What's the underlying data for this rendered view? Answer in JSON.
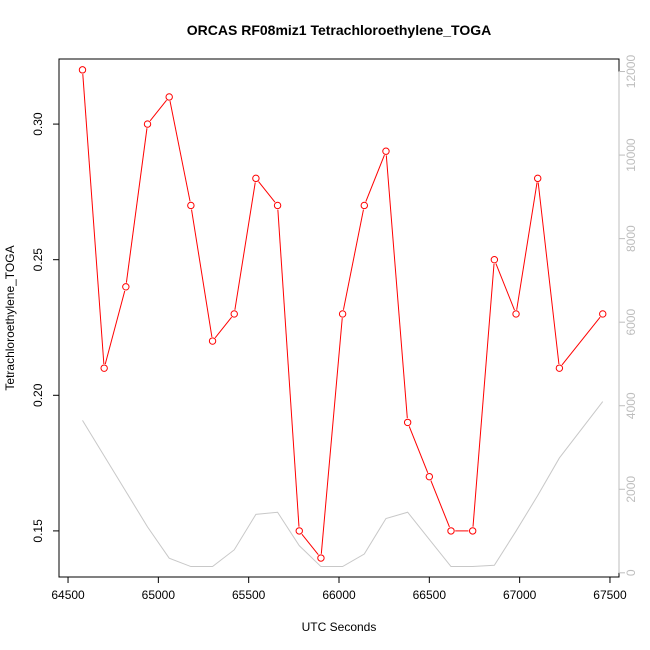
{
  "chart_data": {
    "type": "line",
    "title": "ORCAS RF08miz1 Tetrachloroethylene_TOGA",
    "xlabel": "UTC Seconds",
    "ylabel": "Tetrachloroethylene_TOGA",
    "xlim": [
      64450,
      67550
    ],
    "ylim": [
      0.133,
      0.324
    ],
    "y2lim": [
      -100,
      12300
    ],
    "x_ticks": [
      64500,
      65000,
      65500,
      66000,
      66500,
      67000,
      67500
    ],
    "y_ticks": [
      0.15,
      0.2,
      0.25,
      0.3
    ],
    "y_tick_labels": [
      "0.15",
      "0.20",
      "0.25",
      "0.30"
    ],
    "y2_ticks": [
      0,
      2000,
      4000,
      6000,
      8000,
      10000,
      12000
    ],
    "grid": false,
    "series": [
      {
        "axis": "left",
        "color": "#ff0000",
        "marker": "open-circle",
        "x": [
          64580,
          64700,
          64820,
          64940,
          65060,
          65180,
          65300,
          65420,
          65540,
          65660,
          65780,
          65900,
          66020,
          66140,
          66260,
          66380,
          66500,
          66620,
          66740,
          66860,
          66980,
          67100,
          67220,
          67460
        ],
        "values": [
          0.32,
          0.21,
          0.24,
          0.3,
          0.31,
          0.27,
          0.22,
          0.23,
          0.28,
          0.27,
          0.15,
          0.14,
          0.23,
          0.27,
          0.29,
          0.19,
          0.17,
          0.15,
          0.15,
          0.25,
          0.23,
          0.28,
          0.21,
          0.23
        ]
      },
      {
        "axis": "right",
        "color": "#c8c8c8",
        "marker": "none",
        "x": [
          64580,
          64700,
          64820,
          64940,
          65060,
          65180,
          65300,
          65420,
          65540,
          65660,
          65780,
          65900,
          66020,
          66140,
          66260,
          66380,
          66500,
          66620,
          66740,
          66860,
          66980,
          67100,
          67220,
          67460
        ],
        "values": [
          3650,
          2800,
          1950,
          1100,
          350,
          150,
          150,
          550,
          1400,
          1450,
          650,
          150,
          150,
          450,
          1300,
          1450,
          800,
          150,
          150,
          180,
          1000,
          1850,
          2750,
          4100
        ]
      }
    ]
  }
}
